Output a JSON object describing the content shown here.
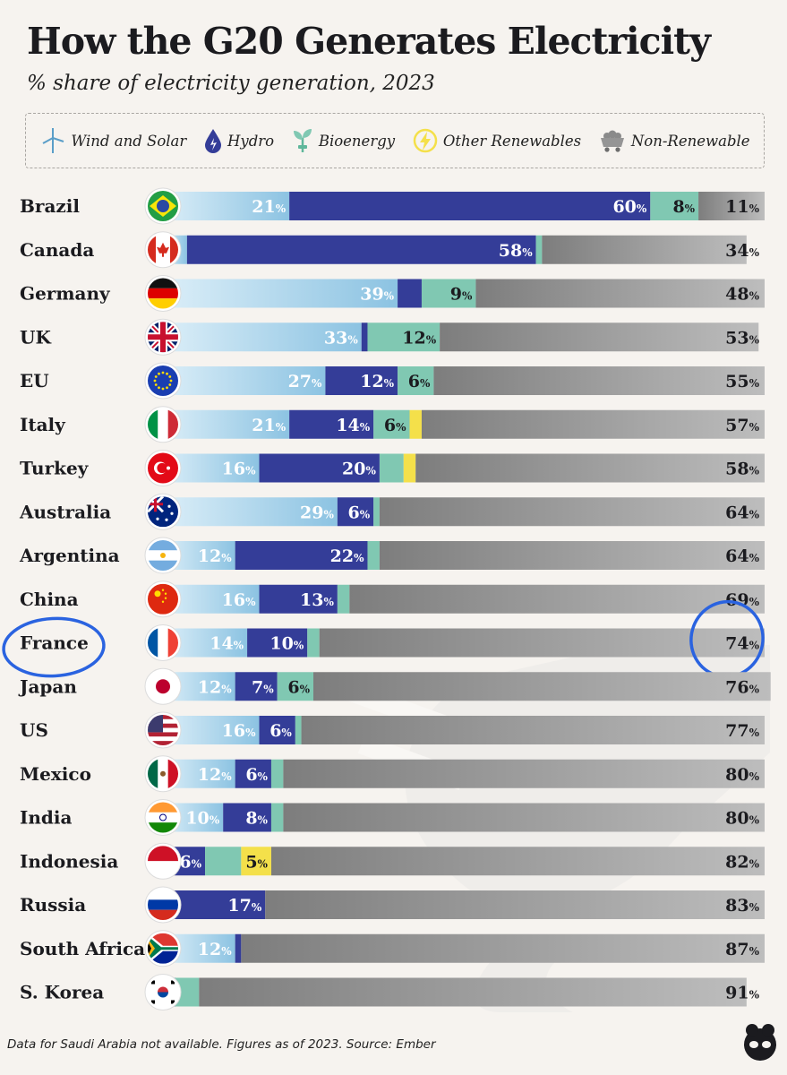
{
  "header": {
    "title": "How the G20 Generates Electricity",
    "subtitle": "% share of electricity generation, 2023"
  },
  "legend": [
    {
      "key": "wind_solar",
      "label": "Wind and Solar",
      "icon": "wind-turbine-icon"
    },
    {
      "key": "hydro",
      "label": "Hydro",
      "icon": "water-drop-icon"
    },
    {
      "key": "bioenergy",
      "label": "Bioenergy",
      "icon": "plant-icon"
    },
    {
      "key": "other",
      "label": "Other Renewables",
      "icon": "lightning-icon"
    },
    {
      "key": "non_renewable",
      "label": "Non-Renewable",
      "icon": "coal-cart-icon"
    }
  ],
  "colors": {
    "wind_solar": "#a9d4ea",
    "hydro": "#343d98",
    "bioenergy": "#80c8b2",
    "other": "#f4e04a",
    "non_renewable": "#959595"
  },
  "chart_data": {
    "type": "bar",
    "orientation": "horizontal",
    "stacked": true,
    "unit": "%",
    "xlim": [
      0,
      100
    ],
    "categories": [
      "Brazil",
      "Canada",
      "Germany",
      "UK",
      "EU",
      "Italy",
      "Turkey",
      "Australia",
      "Argentina",
      "China",
      "France",
      "Japan",
      "US",
      "Mexico",
      "India",
      "Indonesia",
      "Russia",
      "South Africa",
      "S. Korea"
    ],
    "flags": [
      "brazil-flag-icon",
      "canada-flag-icon",
      "germany-flag-icon",
      "uk-flag-icon",
      "eu-flag-icon",
      "italy-flag-icon",
      "turkey-flag-icon",
      "australia-flag-icon",
      "argentina-flag-icon",
      "china-flag-icon",
      "france-flag-icon",
      "japan-flag-icon",
      "us-flag-icon",
      "mexico-flag-icon",
      "india-flag-icon",
      "indonesia-flag-icon",
      "russia-flag-icon",
      "south-africa-flag-icon",
      "south-korea-flag-icon"
    ],
    "series": [
      {
        "name": "Wind and Solar",
        "values": [
          21,
          4,
          39,
          33,
          27,
          21,
          16,
          29,
          12,
          16,
          14,
          12,
          16,
          12,
          10,
          1,
          0,
          12,
          1
        ]
      },
      {
        "name": "Hydro",
        "values": [
          60,
          58,
          4,
          1,
          12,
          14,
          20,
          6,
          22,
          13,
          10,
          7,
          6,
          6,
          8,
          6,
          17,
          1,
          1
        ]
      },
      {
        "name": "Bioenergy",
        "values": [
          8,
          1,
          9,
          12,
          6,
          6,
          4,
          1,
          2,
          2,
          2,
          6,
          1,
          2,
          2,
          6,
          0,
          0,
          4
        ]
      },
      {
        "name": "Other Renewables",
        "values": [
          0,
          0,
          0,
          0,
          0,
          2,
          2,
          0,
          0,
          0,
          0,
          0,
          0,
          0,
          0,
          5,
          0,
          0,
          0
        ]
      },
      {
        "name": "Non-Renewable",
        "values": [
          11,
          34,
          48,
          53,
          55,
          57,
          58,
          64,
          64,
          69,
          74,
          76,
          77,
          80,
          80,
          82,
          83,
          87,
          91
        ]
      }
    ],
    "labels": [
      [
        "21",
        "60",
        "8",
        "",
        "11"
      ],
      [
        "",
        "58",
        "",
        "",
        "34"
      ],
      [
        "39",
        "",
        "9",
        "",
        "48"
      ],
      [
        "33",
        "",
        "12",
        "",
        "53"
      ],
      [
        "27",
        "12",
        "6",
        "",
        "55"
      ],
      [
        "21",
        "14",
        "6",
        "",
        "57"
      ],
      [
        "16",
        "20",
        "",
        "",
        "58"
      ],
      [
        "29",
        "6",
        "",
        "",
        "64"
      ],
      [
        "12",
        "22",
        "",
        "",
        "64"
      ],
      [
        "16",
        "13",
        "",
        "",
        "69"
      ],
      [
        "14",
        "10",
        "",
        "",
        "74"
      ],
      [
        "12",
        "7",
        "6",
        "",
        "76"
      ],
      [
        "16",
        "6",
        "",
        "",
        "77"
      ],
      [
        "12",
        "6",
        "",
        "",
        "80"
      ],
      [
        "10",
        "8",
        "",
        "",
        "80"
      ],
      [
        "",
        "6",
        "",
        "5",
        "82"
      ],
      [
        "",
        "17",
        "",
        "",
        "83"
      ],
      [
        "12",
        "",
        "",
        "",
        "87"
      ],
      [
        "",
        "",
        "",
        "",
        "91"
      ]
    ],
    "highlighted": "France"
  },
  "footer": {
    "note": "Data for Saudi Arabia not available. Figures as of 2023. Source: Ember"
  }
}
